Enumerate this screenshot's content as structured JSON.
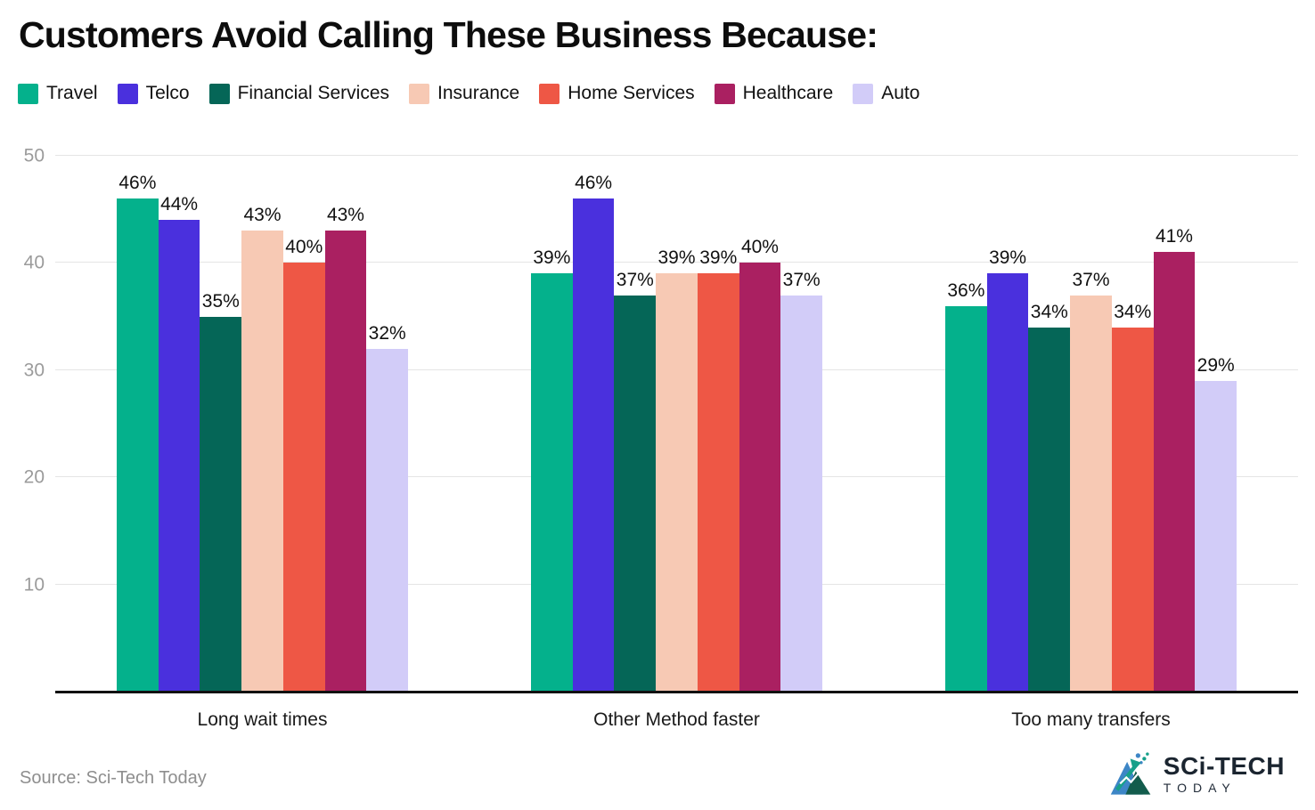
{
  "title": "Customers Avoid Calling These Business Because:",
  "source": "Source: Sci-Tech Today",
  "logo": {
    "line1": "SCi-TECH",
    "line2": "TODAY"
  },
  "colors": {
    "grid": "#e5e5e5",
    "axis": "#111111",
    "tick_text": "#9b9b9b",
    "label_text": "#111111",
    "logo_blue": "#3d86c6",
    "logo_green": "#135c4c",
    "logo_teal": "#17a08a"
  },
  "chart_data": {
    "type": "bar",
    "title": "Customers Avoid Calling These Business Because:",
    "categories": [
      "Long wait times",
      "Other Method faster",
      "Too many transfers"
    ],
    "series": [
      {
        "name": "Travel",
        "color": "#04b18c",
        "values": [
          46,
          39,
          36
        ]
      },
      {
        "name": "Telco",
        "color": "#4a30dd",
        "values": [
          44,
          46,
          39
        ]
      },
      {
        "name": "Financial Services",
        "color": "#056657",
        "values": [
          35,
          37,
          34
        ]
      },
      {
        "name": "Insurance",
        "color": "#f7c9b4",
        "values": [
          43,
          39,
          37
        ]
      },
      {
        "name": "Home Services",
        "color": "#ee5745",
        "values": [
          40,
          39,
          34
        ]
      },
      {
        "name": "Healthcare",
        "color": "#aa2061",
        "values": [
          43,
          40,
          41
        ]
      },
      {
        "name": "Auto",
        "color": "#d2ccf8",
        "values": [
          32,
          37,
          29
        ]
      }
    ],
    "value_suffix": "%",
    "xlabel": "",
    "ylabel": "",
    "ylim": [
      0,
      50
    ],
    "yticks": [
      10,
      20,
      30,
      40,
      50
    ],
    "grid": "horizontal",
    "legend_position": "top"
  }
}
